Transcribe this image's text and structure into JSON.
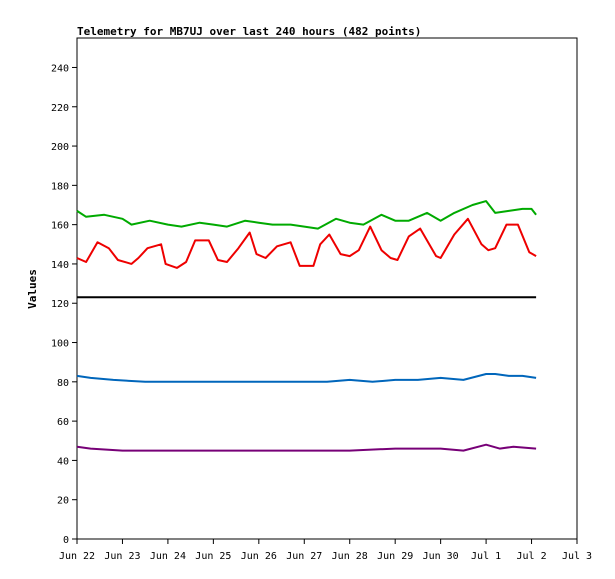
{
  "chart_data": {
    "type": "line",
    "title": "Telemetry for MB7UJ over last 240 hours (482 points)",
    "xlabel": "",
    "ylabel": "Values",
    "ylim": [
      0,
      255
    ],
    "yticks": [
      0,
      20,
      40,
      60,
      80,
      100,
      120,
      140,
      160,
      180,
      200,
      220,
      240
    ],
    "xlim": [
      0,
      11
    ],
    "xticks": [
      {
        "x": 0,
        "label": "Jun 22"
      },
      {
        "x": 1,
        "label": "Jun 23"
      },
      {
        "x": 2,
        "label": "Jun 24"
      },
      {
        "x": 3,
        "label": "Jun 25"
      },
      {
        "x": 4,
        "label": "Jun 26"
      },
      {
        "x": 5,
        "label": "Jun 27"
      },
      {
        "x": 6,
        "label": "Jun 28"
      },
      {
        "x": 7,
        "label": "Jun 29"
      },
      {
        "x": 8,
        "label": "Jun 30"
      },
      {
        "x": 9,
        "label": "Jul 1"
      },
      {
        "x": 10,
        "label": "Jul 2"
      },
      {
        "x": 11,
        "label": "Jul 3"
      }
    ],
    "grid": false,
    "series": [
      {
        "color": "#00aa00",
        "x": [
          0,
          0.2,
          0.6,
          1.0,
          1.2,
          1.6,
          2.0,
          2.3,
          2.7,
          3.0,
          3.3,
          3.7,
          4.0,
          4.3,
          4.7,
          5.0,
          5.3,
          5.7,
          6.0,
          6.3,
          6.7,
          7.0,
          7.3,
          7.7,
          8.0,
          8.3,
          8.7,
          9.0,
          9.2,
          9.5,
          9.8,
          10.0,
          10.1
        ],
        "values": [
          167,
          164,
          165,
          163,
          160,
          162,
          160,
          159,
          161,
          160,
          159,
          162,
          161,
          160,
          160,
          159,
          158,
          163,
          161,
          160,
          165,
          162,
          162,
          166,
          162,
          166,
          170,
          172,
          166,
          167,
          168,
          168,
          165
        ]
      },
      {
        "color": "#ee0000",
        "x": [
          0,
          0.2,
          0.45,
          0.7,
          0.9,
          1.2,
          1.35,
          1.55,
          1.85,
          1.95,
          2.2,
          2.4,
          2.6,
          2.9,
          3.1,
          3.3,
          3.55,
          3.8,
          3.95,
          4.15,
          4.4,
          4.7,
          4.9,
          5.2,
          5.35,
          5.55,
          5.8,
          6.0,
          6.2,
          6.45,
          6.7,
          6.9,
          7.05,
          7.3,
          7.55,
          7.9,
          8.0,
          8.3,
          8.6,
          8.9,
          9.05,
          9.2,
          9.45,
          9.7,
          9.95,
          10.1
        ],
        "values": [
          143,
          141,
          151,
          148,
          142,
          140,
          143,
          148,
          150,
          140,
          138,
          141,
          152,
          152,
          142,
          141,
          148,
          156,
          145,
          143,
          149,
          151,
          139,
          139,
          150,
          155,
          145,
          144,
          147,
          159,
          147,
          143,
          142,
          154,
          158,
          144,
          143,
          155,
          163,
          150,
          147,
          148,
          160,
          160,
          146,
          144
        ]
      },
      {
        "color": "#000000",
        "x": [
          0,
          10.1
        ],
        "values": [
          123,
          123
        ]
      },
      {
        "color": "#0066bb",
        "x": [
          0,
          0.3,
          0.8,
          1.5,
          2.0,
          2.5,
          3.0,
          3.5,
          4.0,
          5.0,
          5.5,
          6.0,
          6.5,
          7.0,
          7.5,
          8.0,
          8.5,
          9.0,
          9.2,
          9.5,
          9.8,
          10.1
        ],
        "values": [
          83,
          82,
          81,
          80,
          80,
          80,
          80,
          80,
          80,
          80,
          80,
          81,
          80,
          81,
          81,
          82,
          81,
          84,
          84,
          83,
          83,
          82
        ]
      },
      {
        "color": "#770077",
        "x": [
          0,
          0.3,
          1.0,
          2.0,
          3.0,
          4.0,
          5.0,
          6.0,
          7.0,
          7.5,
          8.0,
          8.5,
          9.0,
          9.3,
          9.6,
          10.1
        ],
        "values": [
          47,
          46,
          45,
          45,
          45,
          45,
          45,
          45,
          46,
          46,
          46,
          45,
          48,
          46,
          47,
          46
        ]
      }
    ]
  }
}
